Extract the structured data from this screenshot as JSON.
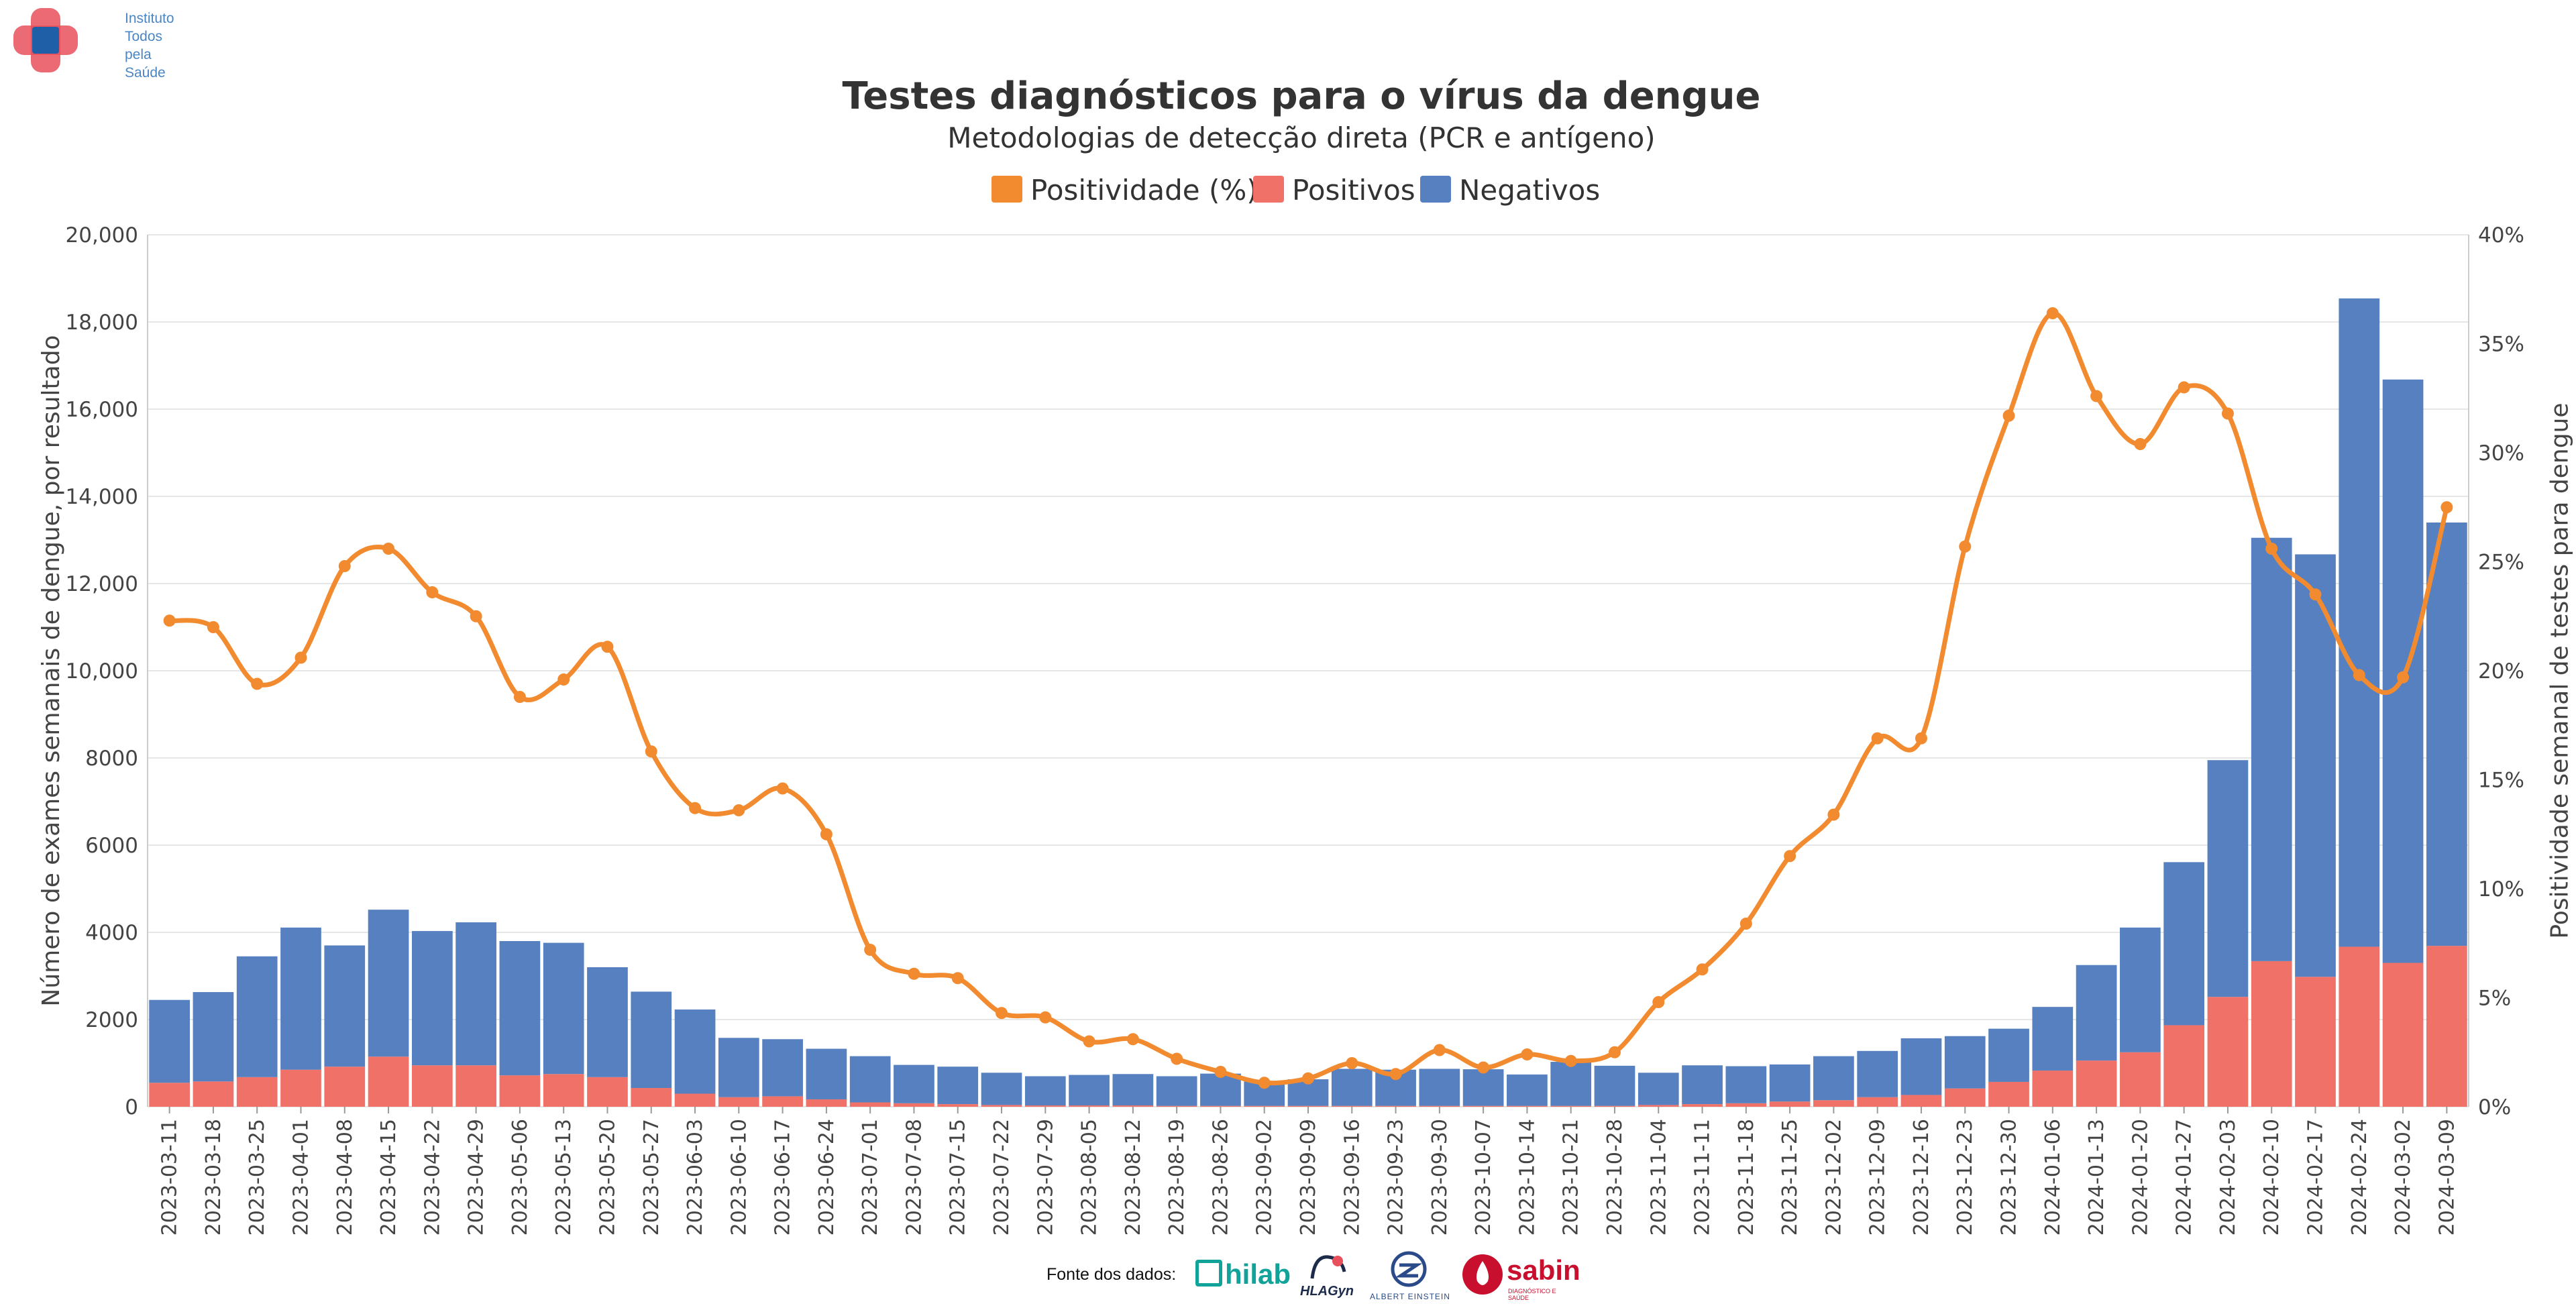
{
  "logo": {
    "lines": [
      "Instituto",
      "Todos",
      "pela",
      "Saúde"
    ],
    "icon": "cross-logo-icon",
    "colors": [
      "#e8505b",
      "#1f5fa8"
    ]
  },
  "footer": {
    "fonte_label": "Fonte dos dados:",
    "sources": [
      {
        "name": "hilab",
        "icon": "hilab-logo-icon",
        "color": "#11a39a"
      },
      {
        "name": "HLAGyn",
        "icon": "hlagyn-logo-icon",
        "color": "#1c2b4a"
      },
      {
        "name": "ALBERT EINSTEIN",
        "icon": "einstein-logo-icon",
        "color": "#2b4a8a"
      },
      {
        "name": "sabin",
        "icon": "sabin-logo-icon",
        "color": "#c8102e",
        "tagline": "DIAGNÓSTICO E SAÚDE"
      }
    ]
  },
  "chart_data": {
    "type": "bar",
    "title": "Testes diagnósticos para o vírus da dengue",
    "subtitle": "Metodologias de detecção direta (PCR e antígeno)",
    "ylabel": "Número de exames semanais de dengue, por resultado",
    "y2label": "Positividade semanal de testes para dengue",
    "ylim": [
      0,
      20000
    ],
    "y2lim": [
      0,
      40
    ],
    "yticks": [
      "0",
      "2000",
      "4000",
      "6000",
      "8000",
      "10,000",
      "12,000",
      "14,000",
      "16,000",
      "18,000",
      "20,000"
    ],
    "y2ticks": [
      "0%",
      "5%",
      "10%",
      "15%",
      "20%",
      "25%",
      "30%",
      "35%",
      "40%"
    ],
    "grid": true,
    "legend_position": "top-center",
    "stacked": true,
    "colors": {
      "positivity": "#f28b30",
      "positivos": "#f07167",
      "negativos": "#5680bf"
    },
    "legend": [
      {
        "label": "Positividade (%)",
        "key": "positivity"
      },
      {
        "label": "Positivos",
        "key": "positivos"
      },
      {
        "label": "Negativos",
        "key": "negativos"
      }
    ],
    "categories": [
      "2023-03-11",
      "2023-03-18",
      "2023-03-25",
      "2023-04-01",
      "2023-04-08",
      "2023-04-15",
      "2023-04-22",
      "2023-04-29",
      "2023-05-06",
      "2023-05-13",
      "2023-05-20",
      "2023-05-27",
      "2023-06-03",
      "2023-06-10",
      "2023-06-17",
      "2023-06-24",
      "2023-07-01",
      "2023-07-08",
      "2023-07-15",
      "2023-07-22",
      "2023-07-29",
      "2023-08-05",
      "2023-08-12",
      "2023-08-19",
      "2023-08-26",
      "2023-09-02",
      "2023-09-09",
      "2023-09-16",
      "2023-09-23",
      "2023-09-30",
      "2023-10-07",
      "2023-10-14",
      "2023-10-21",
      "2023-10-28",
      "2023-11-04",
      "2023-11-11",
      "2023-11-18",
      "2023-11-25",
      "2023-12-02",
      "2023-12-09",
      "2023-12-16",
      "2023-12-23",
      "2023-12-30",
      "2024-01-06",
      "2024-01-13",
      "2024-01-20",
      "2024-01-27",
      "2024-02-03",
      "2024-02-10",
      "2024-02-17",
      "2024-02-24",
      "2024-03-02",
      "2024-03-09"
    ],
    "series": [
      {
        "name": "Positivos",
        "key": "positivos",
        "values": [
          550,
          580,
          680,
          850,
          920,
          1150,
          950,
          950,
          720,
          750,
          680,
          430,
          300,
          220,
          240,
          170,
          100,
          80,
          60,
          40,
          30,
          30,
          30,
          20,
          20,
          20,
          20,
          20,
          20,
          20,
          20,
          20,
          20,
          20,
          40,
          60,
          80,
          120,
          150,
          220,
          270,
          420,
          570,
          830,
          1060,
          1250,
          1870,
          2520,
          3340,
          2980,
          3670,
          3300,
          3690
        ]
      },
      {
        "name": "Negativos",
        "key": "negativos",
        "values": [
          1900,
          2050,
          2770,
          3260,
          2780,
          3370,
          3080,
          3280,
          3080,
          3010,
          2520,
          2210,
          1930,
          1360,
          1310,
          1160,
          1060,
          880,
          860,
          740,
          670,
          700,
          720,
          680,
          740,
          560,
          610,
          850,
          830,
          850,
          840,
          720,
          1010,
          920,
          740,
          890,
          850,
          850,
          1010,
          1060,
          1300,
          1200,
          1220,
          1460,
          2190,
          2860,
          3740,
          5430,
          9710,
          9690,
          14870,
          13380,
          9710
        ]
      },
      {
        "name": "Positividade (%)",
        "key": "positivity",
        "axis": "y2",
        "values": [
          22.3,
          22.0,
          19.4,
          20.6,
          24.8,
          25.6,
          23.6,
          22.5,
          18.8,
          19.6,
          21.1,
          16.3,
          13.7,
          13.6,
          14.6,
          12.5,
          7.2,
          6.1,
          5.9,
          4.3,
          4.1,
          3.0,
          3.1,
          2.2,
          1.6,
          1.1,
          1.3,
          2.0,
          1.5,
          2.6,
          1.8,
          2.4,
          2.1,
          2.5,
          4.8,
          6.3,
          8.4,
          11.5,
          13.4,
          16.9,
          16.9,
          25.7,
          31.7,
          36.4,
          32.6,
          30.4,
          33.0,
          31.8,
          25.6,
          23.5,
          19.8,
          19.7,
          27.5
        ]
      }
    ]
  }
}
